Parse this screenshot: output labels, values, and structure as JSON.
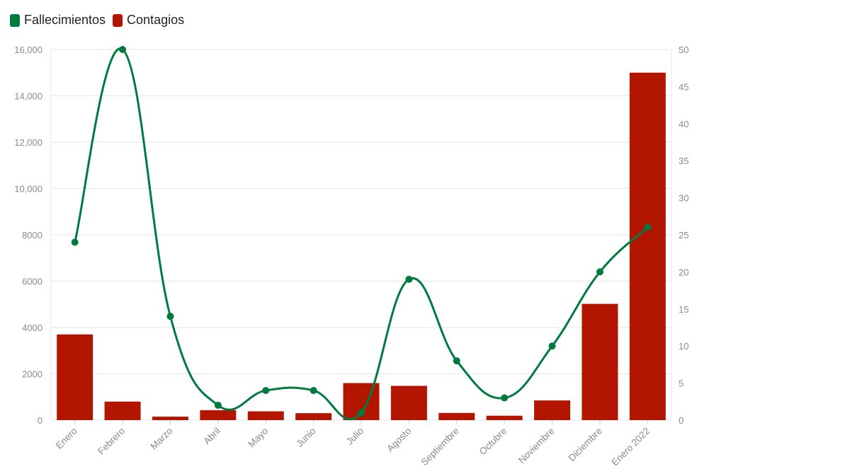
{
  "legend": {
    "deaths_label": "Fallecimientos",
    "cases_label": "Contagios"
  },
  "colors": {
    "deaths": "#007a3d",
    "cases": "#b21500",
    "grid": "#e6e6e6",
    "tick_text": "#8a8a8a"
  },
  "chart_data": {
    "type": "bar",
    "categories": [
      "Enero",
      "Febrero",
      "Marzo",
      "Abril",
      "Mayo",
      "Junio",
      "Julio",
      "Agosto",
      "Septiembre",
      "Octubre",
      "Noviembre",
      "Diciembre",
      "Enero 2022"
    ],
    "series": [
      {
        "name": "Contagios",
        "type": "bar",
        "axis": "left",
        "values": [
          3700,
          800,
          150,
          430,
          380,
          300,
          1600,
          1480,
          310,
          190,
          850,
          5020,
          15000
        ]
      },
      {
        "name": "Fallecimientos",
        "type": "line",
        "axis": "right",
        "values": [
          24,
          50,
          14,
          2,
          4,
          4,
          1,
          19,
          8,
          3,
          10,
          20,
          26
        ]
      }
    ],
    "y_left": {
      "ylim": [
        0,
        16000
      ],
      "ticks": [
        0,
        2000,
        4000,
        6000,
        8000,
        10000,
        12000,
        14000,
        16000
      ],
      "tick_labels": [
        "0",
        "2000",
        "4000",
        "6000",
        "8000",
        "10,000",
        "12,000",
        "14,000",
        "16,000"
      ]
    },
    "y_right": {
      "ylim": [
        0,
        50
      ],
      "ticks": [
        0,
        5,
        10,
        15,
        20,
        25,
        30,
        35,
        40,
        45,
        50
      ],
      "tick_labels": [
        "0",
        "5",
        "10",
        "15",
        "20",
        "25",
        "30",
        "35",
        "40",
        "45",
        "50"
      ]
    },
    "grid": true,
    "legend_position": "top-left"
  }
}
